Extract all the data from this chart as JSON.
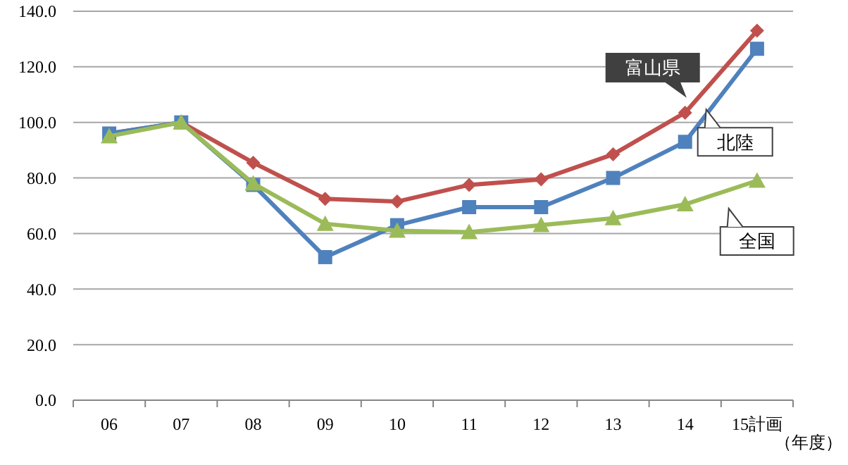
{
  "chart_data": {
    "type": "line",
    "xlabel": "（年度）",
    "categories": [
      "06",
      "07",
      "08",
      "09",
      "10",
      "11",
      "12",
      "13",
      "14",
      "15計画"
    ],
    "ylim": [
      0,
      140
    ],
    "yticks": [
      {
        "value": 0,
        "label": "0.0"
      },
      {
        "value": 20,
        "label": "20.0"
      },
      {
        "value": 40,
        "label": "40.0"
      },
      {
        "value": 60,
        "label": "60.0"
      },
      {
        "value": 80,
        "label": "80.0"
      },
      {
        "value": 100,
        "label": "100.0"
      },
      {
        "value": 120,
        "label": "120.0"
      },
      {
        "value": 140,
        "label": "140.0"
      }
    ],
    "grid": "y",
    "line_style": "solid",
    "series": [
      {
        "name": "富山県",
        "color": "#c0504d",
        "marker": "diamond",
        "values": [
          96,
          100,
          85.5,
          72.5,
          71.5,
          77.5,
          79.5,
          88.5,
          103.5,
          133
        ]
      },
      {
        "name": "北陸",
        "color": "#4f81bd",
        "marker": "square",
        "values": [
          96,
          100,
          77.5,
          51.5,
          63,
          69.5,
          69.5,
          80,
          93,
          126.5
        ]
      },
      {
        "name": "全国",
        "color": "#9bbb59",
        "marker": "triangle",
        "values": [
          95,
          100,
          78,
          63.5,
          61,
          60.5,
          63,
          65.5,
          70.5,
          79
        ]
      }
    ]
  }
}
